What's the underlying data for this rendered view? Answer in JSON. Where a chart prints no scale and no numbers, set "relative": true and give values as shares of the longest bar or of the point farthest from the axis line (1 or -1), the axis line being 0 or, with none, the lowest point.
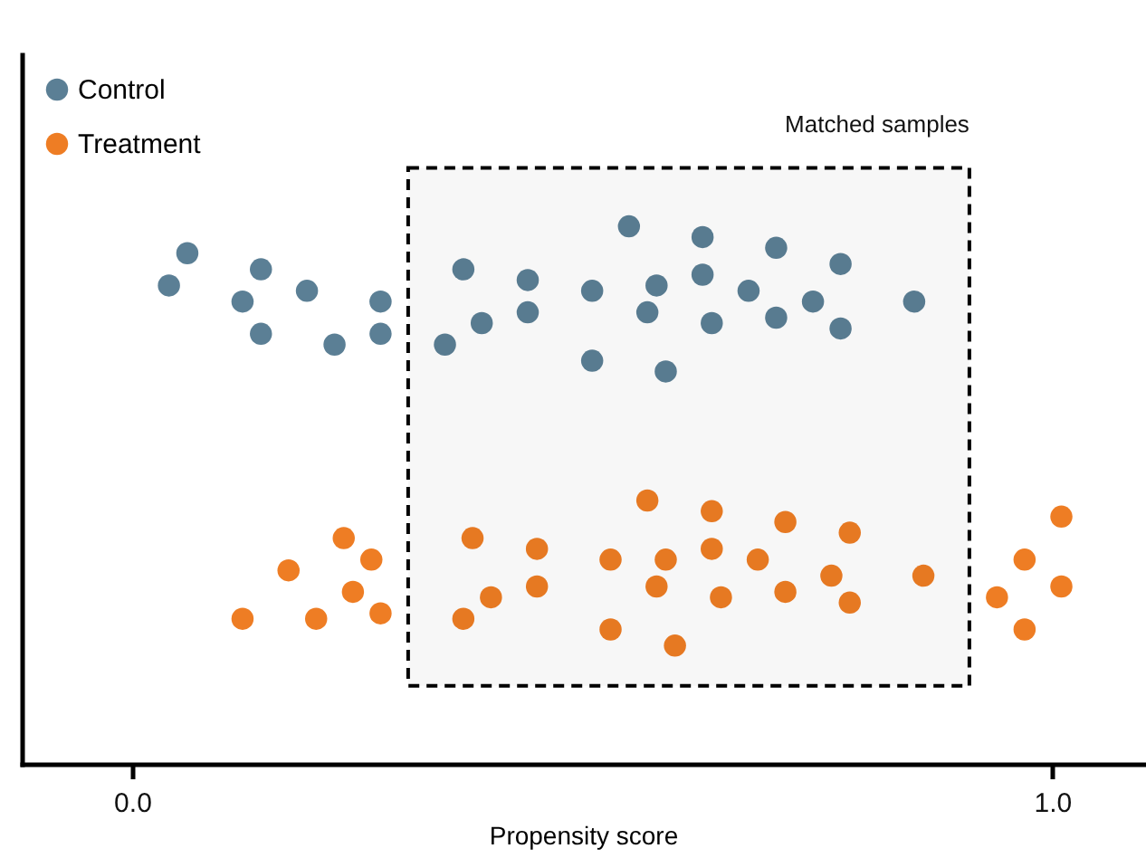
{
  "chart_data": {
    "type": "scatter",
    "xlabel": "Propensity score",
    "relative": true,
    "xlim": [
      -0.12,
      1.1
    ],
    "xticks": [
      {
        "value": 0,
        "label": "0.0"
      },
      {
        "value": 1,
        "label": "1.0"
      }
    ],
    "tick_labels": "x",
    "grid": false,
    "legend": "top left",
    "marker": "circle",
    "series": [
      {
        "name": "Control",
        "color": "#5b7f95",
        "x": [
          0.04,
          0.06,
          0.12,
          0.14,
          0.14,
          0.19,
          0.22,
          0.27,
          0.27,
          0.34,
          0.36,
          0.38,
          0.43,
          0.43,
          0.5,
          0.5,
          0.54,
          0.57,
          0.56,
          0.58,
          0.62,
          0.62,
          0.63,
          0.67,
          0.7,
          0.7,
          0.74,
          0.77,
          0.77,
          0.85
        ],
        "values": [
          0.89,
          0.95,
          0.86,
          0.92,
          0.8,
          0.88,
          0.78,
          0.86,
          0.8,
          0.78,
          0.92,
          0.82,
          0.9,
          0.84,
          0.88,
          0.75,
          1.0,
          0.89,
          0.84,
          0.73,
          0.98,
          0.91,
          0.82,
          0.88,
          0.96,
          0.83,
          0.86,
          0.93,
          0.81,
          0.86
        ]
      },
      {
        "name": "Treatment",
        "color": "#ee7d24",
        "x": [
          0.12,
          0.17,
          0.23,
          0.26,
          0.24,
          0.2,
          0.27,
          0.36,
          0.37,
          0.39,
          0.44,
          0.44,
          0.52,
          0.52,
          0.56,
          0.57,
          0.58,
          0.59,
          0.63,
          0.63,
          0.64,
          0.68,
          0.71,
          0.71,
          0.76,
          0.78,
          0.78,
          0.86,
          0.94,
          0.97,
          0.97,
          1.01,
          1.01
        ],
        "values": [
          0.27,
          0.36,
          0.42,
          0.38,
          0.32,
          0.27,
          0.28,
          0.27,
          0.42,
          0.31,
          0.4,
          0.33,
          0.38,
          0.25,
          0.49,
          0.33,
          0.38,
          0.22,
          0.47,
          0.4,
          0.31,
          0.38,
          0.45,
          0.32,
          0.35,
          0.43,
          0.3,
          0.35,
          0.31,
          0.38,
          0.25,
          0.46,
          0.33
        ]
      }
    ],
    "bands": [
      {
        "axis": "x",
        "from": 0.3,
        "to": 0.91,
        "label": "Matched samples",
        "color": "#000000"
      }
    ]
  }
}
